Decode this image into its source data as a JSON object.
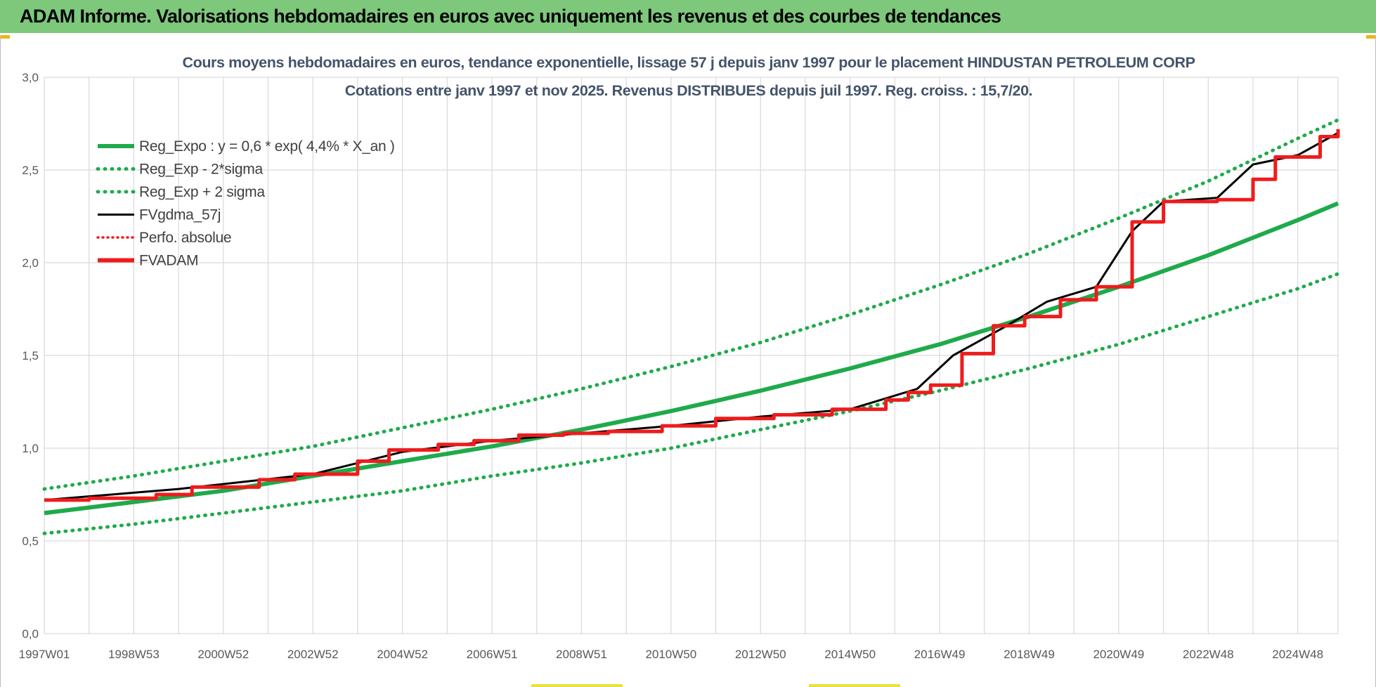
{
  "header": {
    "title": "ADAM Informe. Valorisations hebdomadaires en euros avec uniquement les revenus et des courbes de tendances"
  },
  "colors": {
    "header_bg": "#7dc87b",
    "trend_green": "#1faa4b",
    "fv_black": "#000000",
    "fvadam_red": "#ee1c1c",
    "grid": "#d9d9d9"
  },
  "chart_data": {
    "type": "line",
    "title_line1": "Cours moyens hebdomadaires en euros, tendance exponentielle, lissage 57 j depuis janv 1997 pour le placement HINDUSTAN PETROLEUM CORP",
    "title_line2": "Cotations entre janv 1997 et nov 2025. Revenus DISTRIBUES depuis juil 1997. Reg. croiss. : 15,7/20.",
    "xlabel": "",
    "ylabel": "",
    "ylim": [
      0,
      3
    ],
    "xlim": [
      1997.0,
      2025.9
    ],
    "y_ticks": [
      "0,0",
      "0,5",
      "1,0",
      "1,5",
      "2,0",
      "2,5",
      "3,0"
    ],
    "x_ticks": [
      {
        "label": "1997W01",
        "x": 1997.0
      },
      {
        "label": "1998W53",
        "x": 1999.0
      },
      {
        "label": "2000W52",
        "x": 2001.0
      },
      {
        "label": "2002W52",
        "x": 2003.0
      },
      {
        "label": "2004W52",
        "x": 2005.0
      },
      {
        "label": "2006W51",
        "x": 2007.0
      },
      {
        "label": "2008W51",
        "x": 2009.0
      },
      {
        "label": "2010W50",
        "x": 2011.0
      },
      {
        "label": "2012W50",
        "x": 2013.0
      },
      {
        "label": "2014W50",
        "x": 2015.0
      },
      {
        "label": "2016W49",
        "x": 2017.0
      },
      {
        "label": "2018W49",
        "x": 2019.0
      },
      {
        "label": "2020W49",
        "x": 2021.0
      },
      {
        "label": "2022W48",
        "x": 2023.0
      },
      {
        "label": "2024W48",
        "x": 2025.0
      }
    ],
    "grid": true,
    "legend_position": "top-left",
    "legend": [
      {
        "label": "Reg_Expo : y = 0,6 * exp( 4,4% *  X_an )",
        "style": "solid-green"
      },
      {
        "label": "Reg_Exp - 2*sigma",
        "style": "dotted-green"
      },
      {
        "label": "Reg_Exp + 2 sigma",
        "style": "dotted-green"
      },
      {
        "label": "FVgdma_57j",
        "style": "solid-black"
      },
      {
        "label": "Perfo. absolue",
        "style": "dotted-red"
      },
      {
        "label": "FVADAM",
        "style": "solid-red-thick"
      }
    ],
    "series": [
      {
        "name": "Reg_Expo : y = 0,6 * exp( 4,4% *  X_an )",
        "x": [
          1997.0,
          1999.0,
          2001.0,
          2003.0,
          2005.0,
          2007.0,
          2009.0,
          2011.0,
          2013.0,
          2015.0,
          2017.0,
          2019.0,
          2021.0,
          2023.0,
          2025.0,
          2025.9
        ],
        "values": [
          0.65,
          0.71,
          0.77,
          0.85,
          0.93,
          1.01,
          1.1,
          1.2,
          1.31,
          1.43,
          1.56,
          1.71,
          1.87,
          2.04,
          2.23,
          2.32
        ]
      },
      {
        "name": "Reg_Exp - 2*sigma",
        "x": [
          1997.0,
          1999.0,
          2001.0,
          2003.0,
          2005.0,
          2007.0,
          2009.0,
          2011.0,
          2013.0,
          2015.0,
          2017.0,
          2019.0,
          2021.0,
          2023.0,
          2025.0,
          2025.9
        ],
        "values": [
          0.54,
          0.59,
          0.65,
          0.71,
          0.77,
          0.85,
          0.92,
          1.0,
          1.1,
          1.2,
          1.31,
          1.43,
          1.56,
          1.71,
          1.86,
          1.94
        ]
      },
      {
        "name": "Reg_Exp + 2 sigma",
        "x": [
          1997.0,
          1999.0,
          2001.0,
          2003.0,
          2005.0,
          2007.0,
          2009.0,
          2011.0,
          2013.0,
          2015.0,
          2017.0,
          2019.0,
          2021.0,
          2023.0,
          2025.0,
          2025.9
        ],
        "values": [
          0.78,
          0.85,
          0.93,
          1.01,
          1.11,
          1.21,
          1.32,
          1.44,
          1.57,
          1.72,
          1.88,
          2.05,
          2.24,
          2.44,
          2.67,
          2.77
        ]
      },
      {
        "name": "FVgdma_57j",
        "x": [
          1997.0,
          2000.0,
          2003.0,
          2005.0,
          2007.0,
          2009.0,
          2011.0,
          2013.0,
          2015.0,
          2016.5,
          2017.3,
          2018.5,
          2019.4,
          2020.5,
          2021.3,
          2022.0,
          2023.2,
          2024.0,
          2025.0,
          2025.9
        ],
        "values": [
          0.72,
          0.78,
          0.86,
          0.98,
          1.04,
          1.08,
          1.12,
          1.17,
          1.21,
          1.32,
          1.5,
          1.66,
          1.79,
          1.87,
          2.17,
          2.33,
          2.35,
          2.53,
          2.58,
          2.7
        ]
      },
      {
        "name": "FVADAM",
        "x": [
          1997.0,
          1997.5,
          1998.0,
          1999.5,
          2000.3,
          2001.0,
          2001.8,
          2002.6,
          2003.3,
          2004.0,
          2004.7,
          2005.8,
          2006.6,
          2007.6,
          2008.6,
          2009.6,
          2010.8,
          2012.0,
          2013.3,
          2014.6,
          2015.8,
          2016.3,
          2016.8,
          2017.5,
          2018.2,
          2018.9,
          2019.7,
          2020.5,
          2021.3,
          2022.0,
          2023.2,
          2024.0,
          2024.5,
          2025.5,
          2025.9
        ],
        "values": [
          0.72,
          0.72,
          0.73,
          0.75,
          0.79,
          0.79,
          0.83,
          0.86,
          0.86,
          0.93,
          0.99,
          1.02,
          1.04,
          1.07,
          1.08,
          1.09,
          1.12,
          1.16,
          1.18,
          1.21,
          1.26,
          1.3,
          1.34,
          1.51,
          1.66,
          1.71,
          1.8,
          1.87,
          2.22,
          2.33,
          2.34,
          2.45,
          2.57,
          2.68,
          2.72
        ]
      }
    ]
  }
}
